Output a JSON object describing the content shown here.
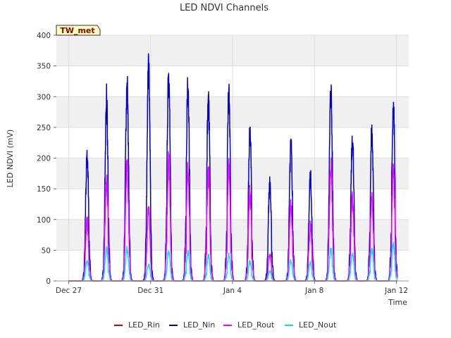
{
  "chart_data": {
    "type": "line",
    "title": "LED NDVI Channels",
    "badge": "TW_met",
    "xlabel": "Time",
    "ylabel": "LED NDVI (mV)",
    "ylim": [
      0,
      400
    ],
    "yticks": [
      0,
      50,
      100,
      150,
      200,
      250,
      300,
      350,
      400
    ],
    "xlim": [
      -0.6,
      16.6
    ],
    "xticks": [
      {
        "value": 0,
        "label": "Dec 27"
      },
      {
        "value": 4,
        "label": "Dec 31"
      },
      {
        "value": 8,
        "label": "Jan 4"
      },
      {
        "value": 12,
        "label": "Jan 8"
      },
      {
        "value": 16,
        "label": "Jan 12"
      }
    ],
    "x_unit": "days since Dec 27",
    "grid": true,
    "legend_position": "bottom",
    "series": [
      {
        "name": "LED_Rin",
        "color": "#cc0000",
        "peaks": [
          [
            0.87,
            0
          ],
          [
            1.85,
            0
          ],
          [
            2.85,
            0
          ],
          [
            3.85,
            0
          ],
          [
            4.85,
            0
          ],
          [
            5.85,
            0
          ],
          [
            6.85,
            0
          ],
          [
            7.85,
            0
          ],
          [
            8.85,
            0
          ],
          [
            9.85,
            0
          ],
          [
            10.85,
            0
          ],
          [
            11.85,
            0
          ],
          [
            12.85,
            0
          ],
          [
            13.85,
            0
          ],
          [
            14.85,
            0
          ],
          [
            15.85,
            0
          ]
        ]
      },
      {
        "name": "LED_Nin",
        "color": "#0000cc",
        "peaks": [
          [
            0.9,
            228
          ],
          [
            1.85,
            323
          ],
          [
            2.85,
            361
          ],
          [
            3.9,
            386
          ],
          [
            4.88,
            373
          ],
          [
            5.82,
            350
          ],
          [
            6.82,
            337
          ],
          [
            7.82,
            345
          ],
          [
            8.85,
            270
          ],
          [
            9.82,
            176
          ],
          [
            10.85,
            244
          ],
          [
            11.8,
            188
          ],
          [
            12.8,
            345
          ],
          [
            13.85,
            263
          ],
          [
            14.8,
            267
          ],
          [
            15.85,
            323
          ]
        ]
      },
      {
        "name": "LED_Rout",
        "color": "#ff00ff",
        "peaks": [
          [
            0.9,
            108
          ],
          [
            1.85,
            180
          ],
          [
            2.85,
            210
          ],
          [
            3.9,
            130
          ],
          [
            4.88,
            218
          ],
          [
            5.82,
            200
          ],
          [
            6.82,
            196
          ],
          [
            7.82,
            205
          ],
          [
            8.85,
            159
          ],
          [
            9.82,
            47
          ],
          [
            10.85,
            136
          ],
          [
            11.8,
            99
          ],
          [
            12.8,
            210
          ],
          [
            13.85,
            148
          ],
          [
            14.8,
            155
          ],
          [
            15.85,
            197
          ]
        ]
      },
      {
        "name": "LED_Nout",
        "color": "#00e5ee",
        "peaks": [
          [
            0.9,
            36
          ],
          [
            1.85,
            57
          ],
          [
            2.85,
            58
          ],
          [
            3.9,
            30
          ],
          [
            4.88,
            53
          ],
          [
            5.82,
            53
          ],
          [
            6.82,
            45
          ],
          [
            7.82,
            47
          ],
          [
            8.85,
            35
          ],
          [
            9.82,
            17
          ],
          [
            10.85,
            37
          ],
          [
            11.8,
            33
          ],
          [
            12.8,
            58
          ],
          [
            13.85,
            48
          ],
          [
            14.8,
            57
          ],
          [
            15.85,
            67
          ]
        ]
      }
    ]
  }
}
